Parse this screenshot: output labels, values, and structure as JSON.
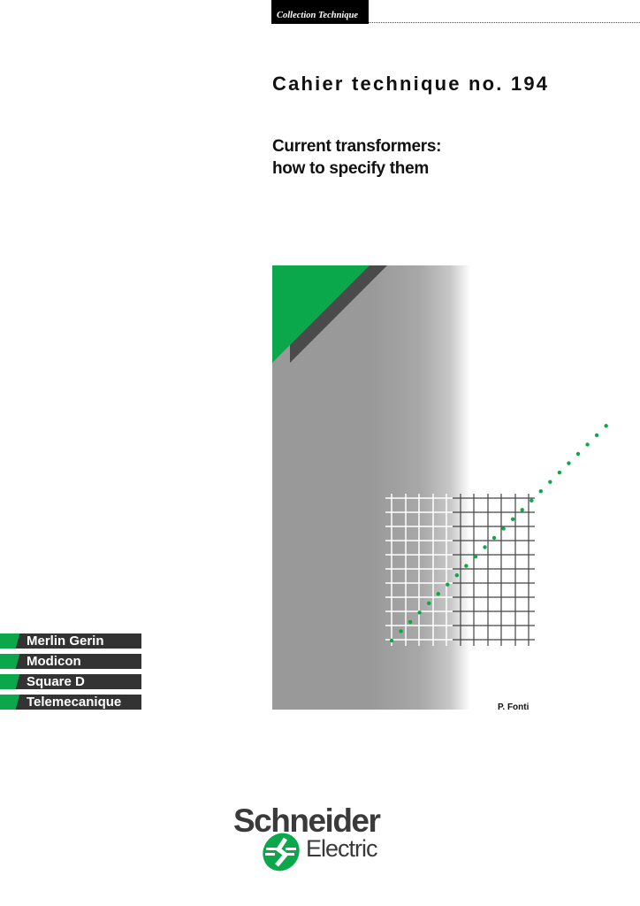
{
  "header": {
    "collection_label": "Collection Technique"
  },
  "title": "Cahier technique no. 194",
  "subtitle": {
    "line1": "Current transformers:",
    "line2": "how to specify them"
  },
  "author": "P. Fonti",
  "brands": [
    "Merlin Gerin",
    "Modicon",
    "Square D",
    "Telemecanique"
  ],
  "logo": {
    "line1": "Schneider",
    "line2": "Electric",
    "icon": "schneider-electric-logo-icon"
  },
  "colors": {
    "green": "#0aa84a",
    "dark": "#333333",
    "gray": "#999999"
  }
}
